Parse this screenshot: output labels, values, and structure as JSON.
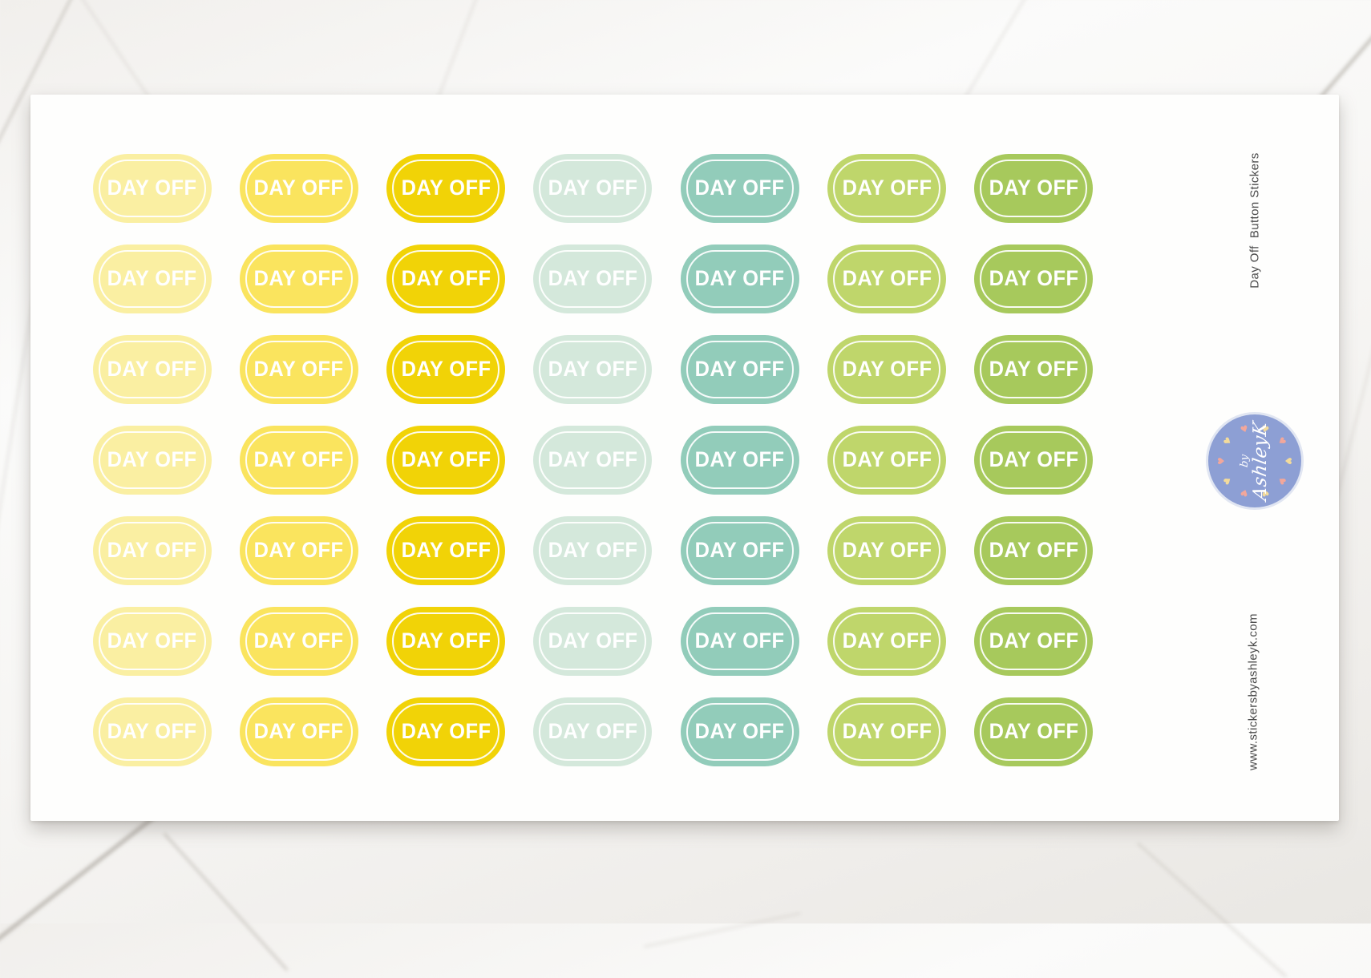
{
  "sheet": {
    "sticker_label": "DAY OFF",
    "grid": {
      "rows": 7,
      "columns": 7
    },
    "column_colors": [
      {
        "name": "pale-yellow",
        "hex": "#FAEFA2"
      },
      {
        "name": "sunny-yellow",
        "hex": "#FAE45E"
      },
      {
        "name": "golden-yellow",
        "hex": "#F1D307"
      },
      {
        "name": "pale-mint",
        "hex": "#D4E8DB"
      },
      {
        "name": "seafoam-green",
        "hex": "#92CCBA"
      },
      {
        "name": "light-lime",
        "hex": "#BFD66B"
      },
      {
        "name": "apple-green",
        "hex": "#A7C95C"
      }
    ],
    "side_text_top": "Day Off  Button Stickers",
    "side_text_bottom": "www.stickersbyashleyk.com"
  },
  "logo": {
    "line1": "by",
    "line2": "AshleyK",
    "circle_color": "#8D9FD4",
    "heart_colors": [
      "#F2A79B",
      "#F3DB9B"
    ],
    "heart_count": 10
  },
  "colors": {
    "sheet": "#FEFEFD",
    "side_text": "#4B4B4B",
    "sticker_text": "#FFFFFF"
  }
}
